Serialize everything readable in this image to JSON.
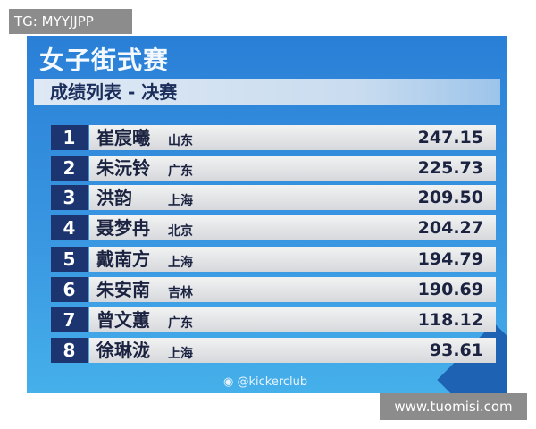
{
  "title": "女子街式赛",
  "subtitle": "成绩列表 - 决赛",
  "rows": [
    {
      "rank": "1",
      "name": "崔宸曦",
      "province": "山东",
      "score": "247.15"
    },
    {
      "rank": "2",
      "name": "朱沅铃",
      "province": "广东",
      "score": "225.73"
    },
    {
      "rank": "3",
      "name": "洪韵",
      "province": "上海",
      "score": "209.50"
    },
    {
      "rank": "4",
      "name": "聂梦冉",
      "province": "北京",
      "score": "204.27"
    },
    {
      "rank": "5",
      "name": "戴南方",
      "province": "上海",
      "score": "194.79"
    },
    {
      "rank": "6",
      "name": "朱安南",
      "province": "吉林",
      "score": "190.69"
    },
    {
      "rank": "7",
      "name": "曾文蕙",
      "province": "广东",
      "score": "118.12"
    },
    {
      "rank": "8",
      "name": "徐琳泷",
      "province": "上海",
      "score": "93.61"
    }
  ],
  "weibo_handle": "@kickerclub",
  "watermark_tg": "TG: MYYJJPP",
  "watermark_site": "www.tuomisi.com",
  "colors": {
    "board": "#3a98e2",
    "rank_box": "#1c3570",
    "bar": "#e4e5e8"
  }
}
